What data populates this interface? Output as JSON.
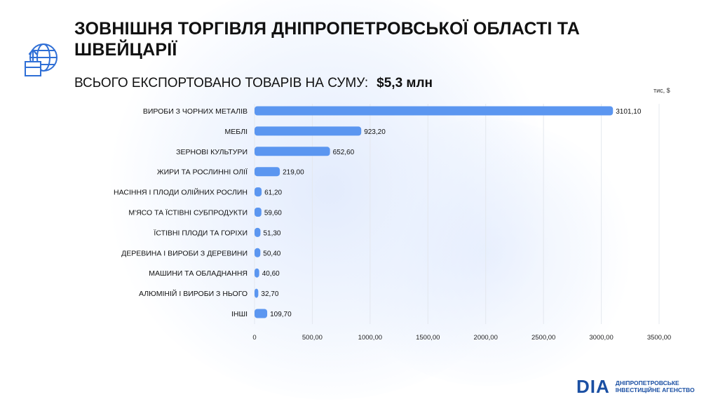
{
  "header": {
    "title": "ЗОВНІШНЯ ТОРГІВЛЯ ДНІПРОПЕТРОВСЬКОЇ ОБЛАСТІ ТА ШВЕЙЦАРІЇ",
    "subtitle_label": "ВСЬОГО ЕКСПОРТОВАНО ТОВАРІВ НА СУМУ:",
    "subtitle_amount": "$5,3 млн",
    "icon": "globe-box-export-icon"
  },
  "footer": {
    "logo_mark": "DIA",
    "logo_line1": "ДНІПРОПЕТРОВСЬКЕ",
    "logo_line2": "ІНВЕСТИЦІЙНЕ АГЕНСТВО"
  },
  "colors": {
    "bar": "#5b96f0",
    "text": "#111111",
    "brand": "#1a4fa3"
  },
  "chart_data": {
    "type": "bar",
    "orientation": "horizontal",
    "units_label": "тис, $",
    "categories": [
      "ВИРОБИ З ЧОРНИХ МЕТАЛІВ",
      "МЕБЛІ",
      "ЗЕРНОВІ КУЛЬТУРИ",
      "ЖИРИ ТА РОСЛИННІ ОЛІЇ",
      "НАСІННЯ І ПЛОДИ ОЛІЙНИХ РОСЛИН",
      "М'ЯСО ТА ЇСТІВНІ СУБПРОДУКТИ",
      "ЇСТІВНІ ПЛОДИ ТА ГОРІХИ",
      "ДЕРЕВИНА І ВИРОБИ З ДЕРЕВИНИ",
      "МАШИНИ ТА ОБЛАДНАННЯ",
      "АЛЮМІНІЙ І ВИРОБИ З НЬОГО",
      "ІНШІ"
    ],
    "values": [
      3101.1,
      923.2,
      652.6,
      219.0,
      61.2,
      59.6,
      51.3,
      50.4,
      40.6,
      32.7,
      109.7
    ],
    "value_labels": [
      "3101,10",
      "923,20",
      "652,60",
      "219,00",
      "61,20",
      "59,60",
      "51,30",
      "50,40",
      "40,60",
      "32,70",
      "109,70"
    ],
    "xlim": [
      0,
      3500
    ],
    "x_ticks": [
      0,
      500,
      1000,
      1500,
      2000,
      2500,
      3000,
      3500
    ],
    "x_tick_labels": [
      "0",
      "500,00",
      "1000,00",
      "1500,00",
      "2000,00",
      "2500,00",
      "3000,00",
      "3500,00"
    ],
    "grid": true,
    "legend": "none"
  }
}
